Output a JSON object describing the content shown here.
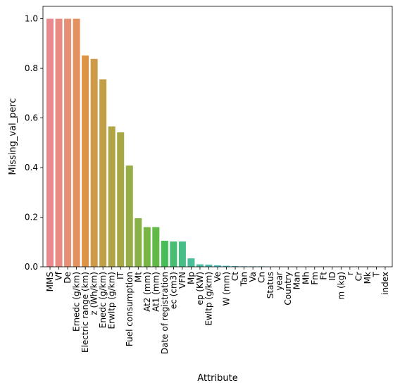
{
  "chart_data": {
    "type": "bar",
    "xlabel": "Attribute",
    "ylabel": "Missing_val_perc",
    "ylim": [
      0,
      1.05
    ],
    "yticks": [
      0.0,
      0.2,
      0.4,
      0.6,
      0.8,
      1.0
    ],
    "ytick_labels": [
      "0.0",
      "0.2",
      "0.4",
      "0.6",
      "0.8",
      "1.0"
    ],
    "grid": false,
    "categories": [
      "MMS",
      "Vf",
      "De",
      "Ernedc (g/km)",
      "Electric range (km)",
      "z (Wh/km)",
      "Enedc (g/km)",
      "Erwltp (g/km)",
      "IT",
      "Fuel consumption",
      "Mt",
      "At2 (mm)",
      "At1 (mm)",
      "Date of registration",
      "ec (cm3)",
      "VFN",
      "Mp",
      "ep (KW)",
      "Ewltp (g/km)",
      "Ve",
      "W (mm)",
      "Ct",
      "Tan",
      "Va",
      "Cn",
      "Status",
      "year",
      "Country",
      "Man",
      "Mh",
      "Fm",
      "Ft",
      "ID",
      "m (kg)",
      "r",
      "Cr",
      "Mk",
      "T",
      "index"
    ],
    "values": [
      1.0,
      1.0,
      1.0,
      1.0,
      0.852,
      0.838,
      0.756,
      0.566,
      0.542,
      0.408,
      0.196,
      0.16,
      0.16,
      0.105,
      0.102,
      0.102,
      0.034,
      0.01,
      0.009,
      0.006,
      0.004,
      0.003,
      0.002,
      0.002,
      0.002,
      0.001,
      0.001,
      0.001,
      0.001,
      0.001,
      0.001,
      0.001,
      0.001,
      0.001,
      0.001,
      0.001,
      0.001,
      0.001,
      0.0
    ],
    "colors": [
      "#e8888f",
      "#e88c83",
      "#e58f74",
      "#e3925f",
      "#dd9345",
      "#ce9a48",
      "#c09f47",
      "#b1a446",
      "#a5a845",
      "#97ad45",
      "#88b245",
      "#77b645",
      "#61ba45",
      "#47bd55",
      "#46bd72",
      "#47be86",
      "#49bf99",
      "#49bfa5",
      "#4ac0b2",
      "#4ac0bd",
      "#4bc1c8",
      "#4cc2d3",
      "#4ec3de",
      "#55c5ea",
      "#6ac6f0",
      "#84c8f2",
      "#9ac5f4",
      "#a9c0f5",
      "#b8b9f6",
      "#c6b0f6",
      "#d4a6f6",
      "#e19cf5",
      "#ed93f0",
      "#f18cdf",
      "#f38bd0",
      "#f28ac2",
      "#f189b4",
      "#f089a6",
      "#ee8899"
    ]
  }
}
